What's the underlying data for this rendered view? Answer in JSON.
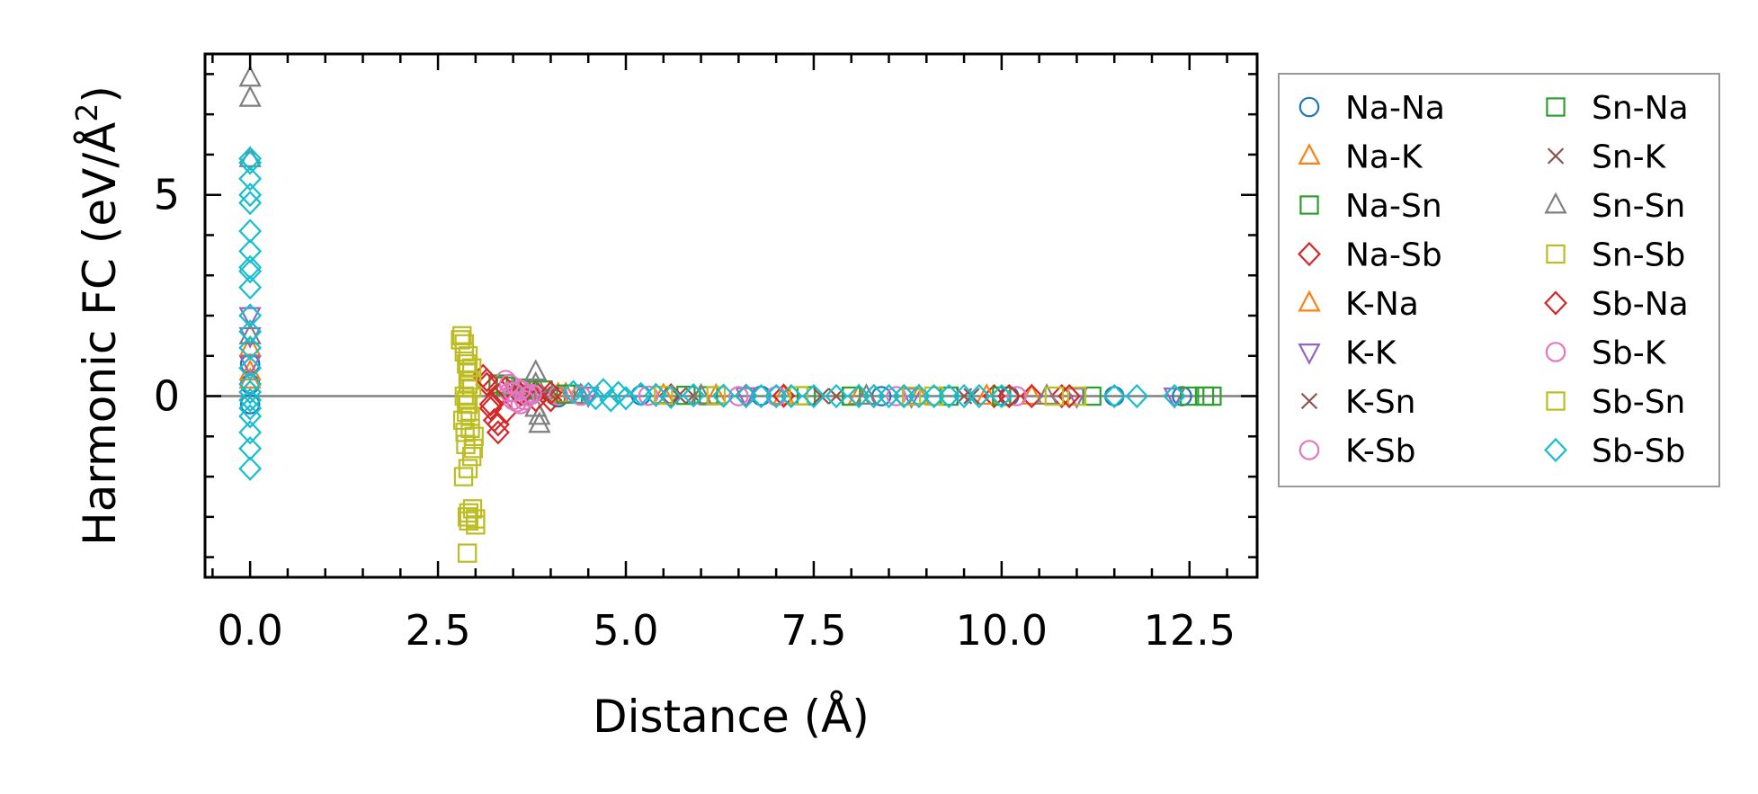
{
  "chart_data": {
    "type": "scatter",
    "title": "",
    "xlabel": "Distance (Å)",
    "ylabel_main": "Harmonic FC (eV/Å",
    "ylabel_sup": "2",
    "ylabel_close": ")",
    "xlim": [
      -0.6,
      13.4
    ],
    "ylim": [
      -4.5,
      8.5
    ],
    "xticks": [
      0.0,
      2.5,
      5.0,
      7.5,
      10.0,
      12.5
    ],
    "xtick_labels": [
      "0.0",
      "2.5",
      "5.0",
      "7.5",
      "10.0",
      "12.5"
    ],
    "yticks": [
      0,
      5
    ],
    "ytick_labels": [
      "0",
      "5"
    ],
    "reference_line_y": 0,
    "legend_position": "right outside",
    "series": [
      {
        "name": "Na-Na",
        "marker": "circle",
        "color": "#1f77b4",
        "x": [
          0.0,
          0.0,
          0.0,
          3.6,
          4.1,
          5.2,
          6.8,
          8.4,
          10.1,
          11.5,
          12.4
        ],
        "y": [
          0.8,
          0.3,
          -0.2,
          0.05,
          -0.03,
          0.02,
          0.01,
          0.0,
          0.0,
          0.0,
          0.0
        ]
      },
      {
        "name": "Na-K",
        "marker": "triangle-up",
        "color": "#ff7f0e",
        "x": [
          0.0,
          0.0,
          4.2,
          5.5,
          7.1,
          8.9,
          10.4
        ],
        "y": [
          1.2,
          0.4,
          0.05,
          0.02,
          0.0,
          0.0,
          0.0
        ]
      },
      {
        "name": "Na-Sn",
        "marker": "square",
        "color": "#2ca02c",
        "x": [
          3.3,
          3.6,
          3.9,
          4.3,
          5.8,
          7.4,
          9.3,
          11.2,
          12.7,
          12.8
        ],
        "y": [
          0.3,
          0.2,
          0.15,
          0.05,
          0.02,
          0.01,
          0.0,
          0.0,
          0.0,
          0.0
        ]
      },
      {
        "name": "Na-Sb",
        "marker": "diamond",
        "color": "#d62728",
        "x": [
          3.1,
          3.15,
          3.2,
          3.25,
          3.3,
          3.35,
          3.4,
          3.6,
          3.8,
          4.0,
          5.6,
          7.1,
          8.7,
          9.9,
          10.4,
          10.8
        ],
        "y": [
          0.5,
          0.3,
          -0.2,
          -0.6,
          -0.9,
          0.1,
          -0.4,
          0.05,
          0.1,
          -0.1,
          0.02,
          0.01,
          0.0,
          0.0,
          0.0,
          0.0
        ]
      },
      {
        "name": "K-Na",
        "marker": "triangle-up",
        "color": "#ff7f0e",
        "x": [
          0.0,
          4.1,
          6.2,
          8.1,
          9.8
        ],
        "y": [
          0.6,
          0.04,
          0.01,
          0.0,
          0.0
        ]
      },
      {
        "name": "K-K",
        "marker": "triangle-down",
        "color": "#9467bd",
        "x": [
          0.0,
          0.0,
          0.0,
          4.5,
          6.6,
          8.8,
          11.0,
          12.3
        ],
        "y": [
          2.0,
          1.5,
          0.8,
          0.02,
          0.01,
          0.0,
          0.0,
          0.0
        ]
      },
      {
        "name": "K-Sn",
        "marker": "x",
        "color": "#8c564b",
        "x": [
          3.5,
          3.7,
          4.0,
          5.9,
          7.8,
          9.6
        ],
        "y": [
          0.15,
          0.08,
          0.04,
          0.01,
          0.0,
          0.0
        ]
      },
      {
        "name": "K-Sb",
        "marker": "circle",
        "color": "#e377c2",
        "x": [
          3.4,
          3.45,
          3.5,
          3.55,
          3.6,
          3.65,
          3.7,
          4.1,
          5.3,
          7.0,
          8.6,
          10.2
        ],
        "y": [
          0.4,
          0.1,
          -0.1,
          0.2,
          -0.2,
          0.0,
          0.05,
          0.02,
          0.01,
          0.0,
          0.0,
          0.0
        ]
      },
      {
        "name": "Sn-Na",
        "marker": "square",
        "color": "#2ca02c",
        "x": [
          3.4,
          3.7,
          4.2,
          6.1,
          8.0,
          10.0,
          12.5
        ],
        "y": [
          0.25,
          0.15,
          0.05,
          0.01,
          0.0,
          0.0,
          0.0
        ]
      },
      {
        "name": "Sn-K",
        "marker": "x",
        "color": "#8c564b",
        "x": [
          3.6,
          3.9,
          5.7,
          7.6,
          9.5
        ],
        "y": [
          0.1,
          0.05,
          0.01,
          0.0,
          0.0
        ]
      },
      {
        "name": "Sn-Sn",
        "marker": "triangle-up",
        "color": "#7f7f7f",
        "x": [
          0.0,
          0.0,
          0.0,
          0.0,
          3.8,
          3.8,
          3.8,
          3.85,
          3.85,
          4.4,
          6.0,
          8.2,
          10.6
        ],
        "y": [
          7.9,
          7.4,
          5.9,
          1.5,
          0.6,
          0.3,
          -0.3,
          -0.5,
          -0.7,
          0.02,
          0.01,
          0.0,
          0.0
        ]
      },
      {
        "name": "Sn-Sb",
        "marker": "square",
        "color": "#bcbd22",
        "x": [
          2.8,
          2.82,
          2.85,
          2.88,
          2.9,
          2.92,
          2.95,
          2.85,
          2.9,
          2.88,
          2.83,
          2.93,
          2.98,
          2.87,
          2.95,
          2.9,
          2.84,
          2.96,
          2.89,
          2.91,
          3.0,
          5.5,
          7.3,
          9.1,
          11.0
        ],
        "y": [
          1.4,
          1.5,
          1.1,
          0.8,
          0.6,
          0.4,
          0.2,
          0.0,
          -0.2,
          -0.4,
          -0.6,
          -0.8,
          -1.0,
          -1.2,
          -1.5,
          -1.8,
          -2.0,
          -2.8,
          -3.0,
          -3.1,
          -3.05,
          0.02,
          0.01,
          0.0,
          0.0
        ]
      },
      {
        "name": "Sb-Na",
        "marker": "diamond",
        "color": "#d62728",
        "x": [
          3.15,
          3.2,
          3.3,
          3.4,
          3.6,
          3.8,
          4.0,
          6.6,
          8.3,
          10.1,
          10.9
        ],
        "y": [
          0.4,
          -0.3,
          -0.7,
          0.2,
          0.05,
          -0.1,
          0.08,
          0.01,
          0.0,
          0.0,
          0.0
        ]
      },
      {
        "name": "Sb-K",
        "marker": "circle",
        "color": "#e377c2",
        "x": [
          3.45,
          3.5,
          3.55,
          3.6,
          3.65,
          3.7,
          3.75,
          4.4,
          6.5
        ],
        "y": [
          0.3,
          0.1,
          -0.15,
          0.15,
          -0.1,
          0.0,
          0.05,
          0.01,
          0.0
        ]
      },
      {
        "name": "Sb-Sn",
        "marker": "square",
        "color": "#bcbd22",
        "x": [
          2.85,
          2.9,
          2.95,
          2.9,
          2.88,
          2.93,
          2.86,
          2.97,
          2.91,
          2.89,
          3.0,
          6.2,
          8.8,
          10.7
        ],
        "y": [
          1.3,
          1.0,
          0.7,
          0.3,
          -0.1,
          -0.5,
          -0.9,
          -1.3,
          -2.9,
          -3.9,
          -3.2,
          0.01,
          0.0,
          0.0
        ]
      },
      {
        "name": "Sb-Sb",
        "marker": "diamond",
        "color": "#17becf",
        "x": [
          0.0,
          0.0,
          0.0,
          0.0,
          0.0,
          0.0,
          0.0,
          0.0,
          0.0,
          0.0,
          0.0,
          0.0,
          0.0,
          0.0,
          0.0,
          0.0,
          0.0,
          0.0,
          0.0,
          0.0,
          0.0,
          0.0,
          4.3,
          4.5,
          4.6,
          4.7,
          4.8,
          4.9,
          5.0,
          5.2,
          5.4,
          5.6,
          5.9,
          6.3,
          6.6,
          6.8,
          7.0,
          7.2,
          7.5,
          7.8,
          8.1,
          8.3,
          8.5,
          8.7,
          8.9,
          9.1,
          9.3,
          9.5,
          9.7,
          10.0,
          11.5,
          11.8,
          12.3
        ],
        "y": [
          5.9,
          5.8,
          5.4,
          5.0,
          4.8,
          4.1,
          3.6,
          3.2,
          3.1,
          2.7,
          2.0,
          1.6,
          1.2,
          0.7,
          0.3,
          0.1,
          -0.1,
          -0.3,
          -0.5,
          -0.9,
          -1.3,
          -1.8,
          0.1,
          0.05,
          -0.05,
          0.15,
          -0.1,
          0.08,
          -0.05,
          0.05,
          0.03,
          -0.02,
          0.02,
          0.01,
          0.0,
          0.0,
          0.0,
          0.0,
          0.0,
          0.0,
          0.0,
          0.0,
          0.0,
          0.0,
          0.0,
          0.0,
          0.0,
          0.0,
          0.0,
          0.0,
          0.0,
          0.0,
          0.0
        ]
      }
    ]
  }
}
